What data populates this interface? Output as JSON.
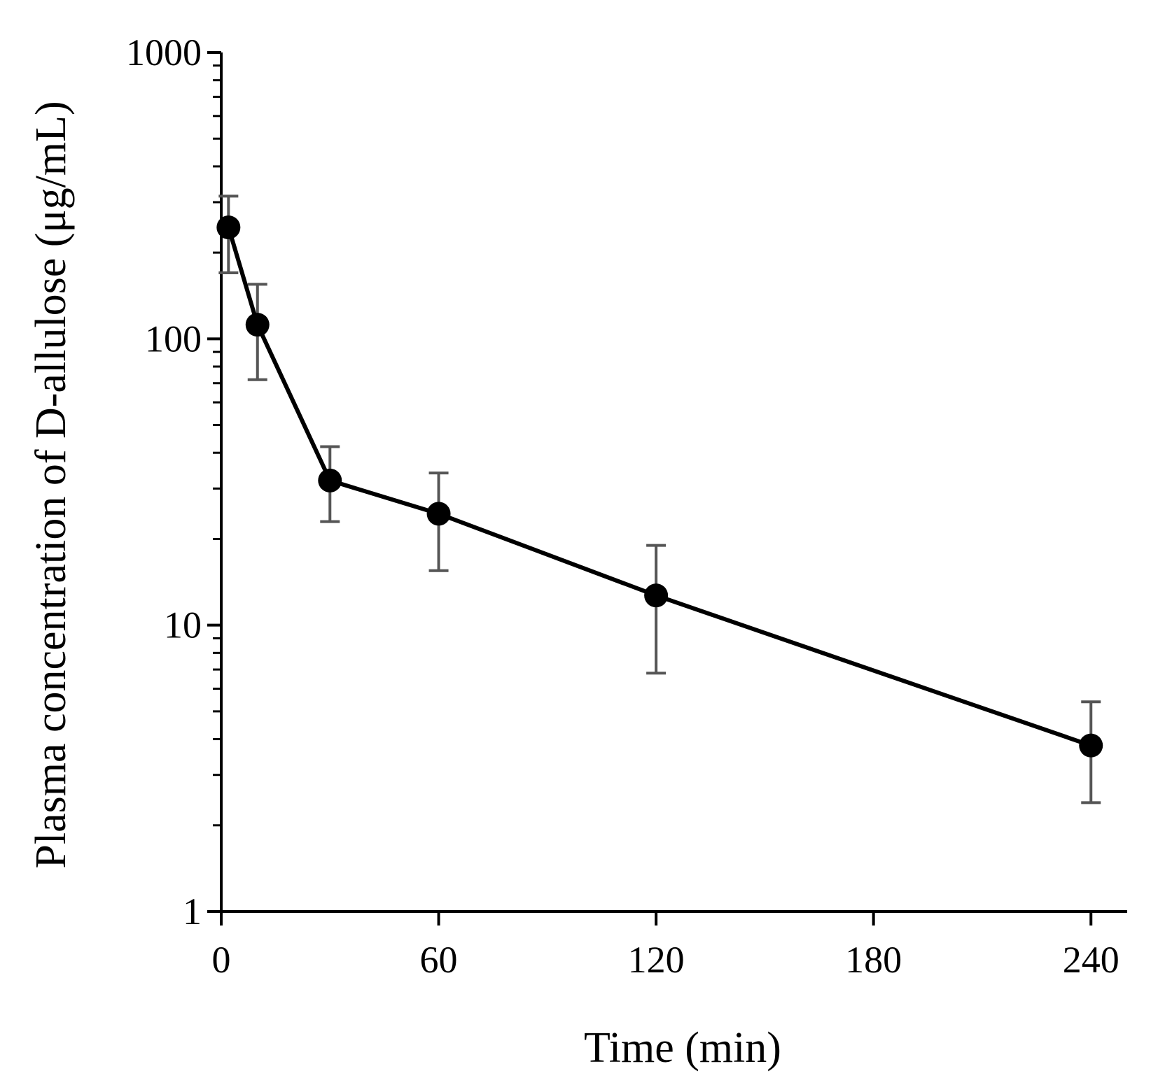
{
  "chart_data": {
    "type": "line",
    "title": "",
    "xlabel": "Time (min)",
    "ylabel": "Plasma concentration of D-allulose (μg/mL)",
    "xlim": [
      0,
      250
    ],
    "ylim": [
      1,
      1000
    ],
    "yscale": "log",
    "xticks": [
      0,
      60,
      120,
      180,
      240
    ],
    "xtick_labels": [
      "0",
      "60",
      "120",
      "180",
      "240"
    ],
    "yticks": [
      1,
      10,
      100,
      1000
    ],
    "ytick_labels": [
      "1",
      "10",
      "100",
      "1000"
    ],
    "grid": false,
    "legend": "none",
    "series": [
      {
        "name": "D-allulose",
        "color": "#000000",
        "error_color": "#555555",
        "x": [
          2,
          10,
          30,
          60,
          120,
          240
        ],
        "values": [
          245,
          112,
          32,
          24.5,
          12.7,
          3.8
        ],
        "err_high": [
          315,
          155,
          42,
          34,
          19,
          5.4
        ],
        "err_low": [
          170,
          72,
          23,
          15.5,
          6.8,
          2.4
        ]
      }
    ]
  }
}
